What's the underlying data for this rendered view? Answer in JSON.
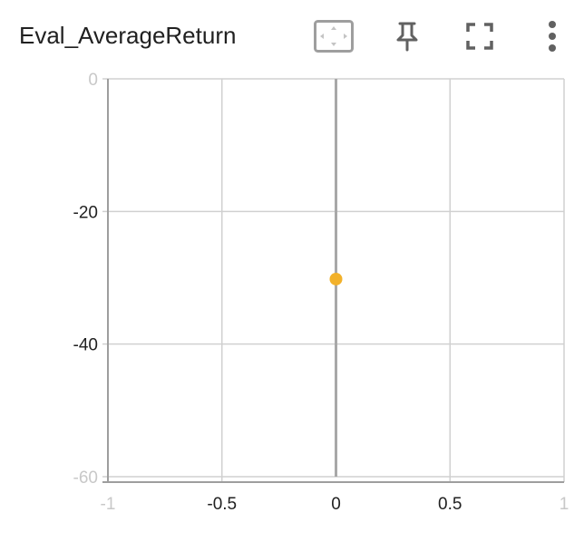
{
  "card": {
    "title": "Eval_AverageReturn"
  },
  "toolbar": {
    "buttons": [
      {
        "name": "fit-domain-button",
        "icon": "fit-to-data-icon"
      },
      {
        "name": "pin-button",
        "icon": "pin-icon"
      },
      {
        "name": "fullscreen-button",
        "icon": "fullscreen-icon"
      },
      {
        "name": "more-options-button",
        "icon": "more-vert-icon"
      }
    ]
  },
  "colors": {
    "series": "#F2B12A",
    "grid": "#d0d0d0",
    "zero_line": "#a8a8a8",
    "axis": "#9e9e9e",
    "icon": "#616161"
  },
  "chart_data": {
    "type": "scatter",
    "title": "Eval_AverageReturn",
    "xlabel": "",
    "ylabel": "",
    "xlim": [
      -1,
      1
    ],
    "ylim": [
      -60,
      0
    ],
    "x_ticks": [
      -1,
      -0.5,
      0,
      0.5,
      1
    ],
    "x_tick_labels": [
      "-1",
      "-0.5",
      "0",
      "0.5",
      "1"
    ],
    "y_ticks": [
      0,
      -20,
      -40,
      -60
    ],
    "y_tick_labels": [
      "0",
      "-20",
      "-40",
      "-60"
    ],
    "grid": true,
    "series": [
      {
        "x": [
          0
        ],
        "y": [
          -30.2
        ]
      }
    ]
  }
}
